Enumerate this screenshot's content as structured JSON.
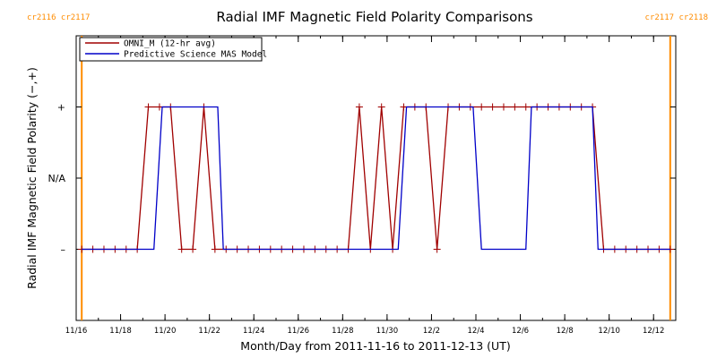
{
  "chart_data": {
    "type": "line",
    "title": "Radial IMF Magnetic Field Polarity Comparisons",
    "xlabel": "Month/Day from 2011-11-16 to 2011-12-13 (UT)",
    "ylabel": "Radial IMF Magnetic Field Polarity (−,+)",
    "xlim": [
      "2011-11-16",
      "2011-12-13"
    ],
    "ylim": [
      -2,
      2
    ],
    "x_ticks": [
      "11/16",
      "11/18",
      "11/20",
      "11/22",
      "11/24",
      "11/26",
      "11/28",
      "11/30",
      "12/2",
      "12/4",
      "12/6",
      "12/8",
      "12/10",
      "12/12"
    ],
    "x_tick_values": [
      "2011-11-16",
      "2011-11-18",
      "2011-11-20",
      "2011-11-22",
      "2011-11-24",
      "2011-11-26",
      "2011-11-28",
      "2011-11-30",
      "2011-12-02",
      "2011-12-04",
      "2011-12-06",
      "2011-12-08",
      "2011-12-10",
      "2011-12-12"
    ],
    "y_ticks": [
      {
        "value": 1,
        "label": "+"
      },
      {
        "value": 0,
        "label": "N/A"
      },
      {
        "value": -1,
        "label": "–"
      }
    ],
    "grid": false,
    "legend_position": "top-left",
    "rotations": [
      {
        "label": "cr2116 cr2117",
        "x": "2011-11-16 06:00",
        "color": "#ff8c00",
        "align": "left"
      },
      {
        "label": "cr2117 cr2118",
        "x": "2011-12-12 18:00",
        "color": "#ff8c00",
        "align": "right"
      }
    ],
    "series": [
      {
        "name": "OMNI_M (12-hr avg)",
        "color": "#a00000",
        "marker": "+",
        "points": [
          [
            "2011-11-16 06:00",
            -1
          ],
          [
            "2011-11-16 18:00",
            -1
          ],
          [
            "2011-11-17 06:00",
            -1
          ],
          [
            "2011-11-17 18:00",
            -1
          ],
          [
            "2011-11-18 06:00",
            -1
          ],
          [
            "2011-11-18 18:00",
            -1
          ],
          [
            "2011-11-19 06:00",
            1
          ],
          [
            "2011-11-19 18:00",
            1
          ],
          [
            "2011-11-20 06:00",
            1
          ],
          [
            "2011-11-20 18:00",
            -1
          ],
          [
            "2011-11-21 06:00",
            -1
          ],
          [
            "2011-11-21 18:00",
            1
          ],
          [
            "2011-11-22 06:00",
            -1
          ],
          [
            "2011-11-22 18:00",
            -1
          ],
          [
            "2011-11-23 06:00",
            -1
          ],
          [
            "2011-11-23 18:00",
            -1
          ],
          [
            "2011-11-24 06:00",
            -1
          ],
          [
            "2011-11-24 18:00",
            -1
          ],
          [
            "2011-11-25 06:00",
            -1
          ],
          [
            "2011-11-25 18:00",
            -1
          ],
          [
            "2011-11-26 06:00",
            -1
          ],
          [
            "2011-11-26 18:00",
            -1
          ],
          [
            "2011-11-27 06:00",
            -1
          ],
          [
            "2011-11-27 18:00",
            -1
          ],
          [
            "2011-11-28 06:00",
            -1
          ],
          [
            "2011-11-28 18:00",
            1
          ],
          [
            "2011-11-29 06:00",
            -1
          ],
          [
            "2011-11-29 18:00",
            1
          ],
          [
            "2011-11-30 06:00",
            -1
          ],
          [
            "2011-11-30 18:00",
            1
          ],
          [
            "2011-12-01 06:00",
            1
          ],
          [
            "2011-12-01 18:00",
            1
          ],
          [
            "2011-12-02 06:00",
            -1
          ],
          [
            "2011-12-02 18:00",
            1
          ],
          [
            "2011-12-03 06:00",
            1
          ],
          [
            "2011-12-03 18:00",
            1
          ],
          [
            "2011-12-04 06:00",
            1
          ],
          [
            "2011-12-04 18:00",
            1
          ],
          [
            "2011-12-05 06:00",
            1
          ],
          [
            "2011-12-05 18:00",
            1
          ],
          [
            "2011-12-06 06:00",
            1
          ],
          [
            "2011-12-06 18:00",
            1
          ],
          [
            "2011-12-07 06:00",
            1
          ],
          [
            "2011-12-07 18:00",
            1
          ],
          [
            "2011-12-08 06:00",
            1
          ],
          [
            "2011-12-08 18:00",
            1
          ],
          [
            "2011-12-09 06:00",
            1
          ],
          [
            "2011-12-09 18:00",
            -1
          ],
          [
            "2011-12-10 06:00",
            -1
          ],
          [
            "2011-12-10 18:00",
            -1
          ],
          [
            "2011-12-11 06:00",
            -1
          ],
          [
            "2011-12-11 18:00",
            -1
          ],
          [
            "2011-12-12 06:00",
            -1
          ],
          [
            "2011-12-12 18:00",
            -1
          ]
        ]
      },
      {
        "name": "Predictive Science MAS Model",
        "color": "#0000c8",
        "marker": "none",
        "points": [
          [
            "2011-11-16 06:00",
            -1
          ],
          [
            "2011-11-19 12:00",
            -1
          ],
          [
            "2011-11-19 21:00",
            1
          ],
          [
            "2011-11-22 09:00",
            1
          ],
          [
            "2011-11-22 15:00",
            -1
          ],
          [
            "2011-11-30 12:00",
            -1
          ],
          [
            "2011-11-30 21:00",
            1
          ],
          [
            "2011-12-03 21:00",
            1
          ],
          [
            "2011-12-04 06:00",
            -1
          ],
          [
            "2011-12-06 06:00",
            -1
          ],
          [
            "2011-12-06 12:00",
            1
          ],
          [
            "2011-12-09 06:00",
            1
          ],
          [
            "2011-12-09 12:00",
            -1
          ],
          [
            "2011-12-12 18:00",
            -1
          ]
        ]
      }
    ]
  }
}
